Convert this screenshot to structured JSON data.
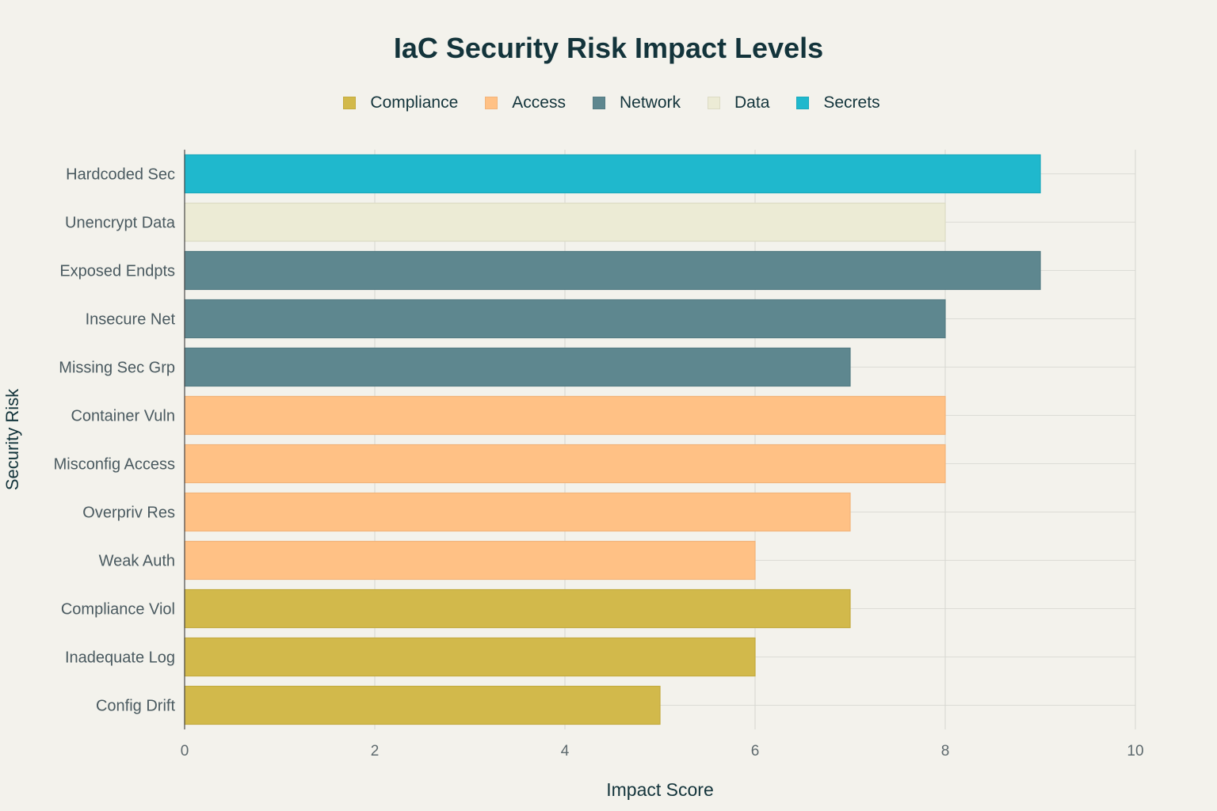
{
  "chart_data": {
    "type": "bar",
    "orientation": "horizontal",
    "title": "IaC Security Risk Impact Levels",
    "xlabel": "Impact Score",
    "ylabel": "Security Risk",
    "xlim": [
      0,
      10
    ],
    "xticks": [
      0,
      2,
      4,
      6,
      8,
      10
    ],
    "grid": true,
    "legend_position": "top-center",
    "legend": [
      {
        "name": "Compliance",
        "color": "#d2b94b"
      },
      {
        "name": "Access",
        "color": "#ffc185"
      },
      {
        "name": "Network",
        "color": "#5e878f"
      },
      {
        "name": "Data",
        "color": "#ecebd5"
      },
      {
        "name": "Secrets",
        "color": "#1fb8cd"
      }
    ],
    "categories": [
      "Hardcoded Sec",
      "Unencrypt Data",
      "Exposed Endpts",
      "Insecure Net",
      "Missing Sec Grp",
      "Container Vuln",
      "Misconfig Access",
      "Overpriv Res",
      "Weak Auth",
      "Compliance Viol",
      "Inadequate Log",
      "Config Drift"
    ],
    "values": [
      9,
      8,
      9,
      8,
      7,
      8,
      8,
      7,
      6,
      7,
      6,
      5
    ],
    "groups": [
      "Secrets",
      "Data",
      "Network",
      "Network",
      "Network",
      "Access",
      "Access",
      "Access",
      "Access",
      "Compliance",
      "Compliance",
      "Compliance"
    ]
  }
}
